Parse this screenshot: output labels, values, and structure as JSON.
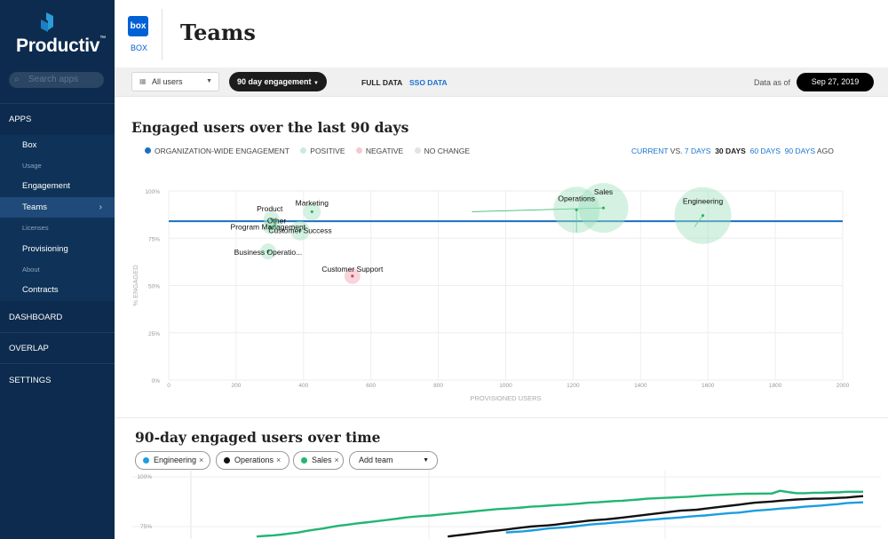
{
  "brand": {
    "name": "Productiv",
    "tm": "™"
  },
  "sidebar": {
    "search_placeholder": "Search apps",
    "apps_label": "APPS",
    "items": [
      {
        "label": "Box",
        "muted": false
      },
      {
        "label": "Usage",
        "muted": true
      },
      {
        "label": "Engagement",
        "muted": false
      },
      {
        "label": "Teams",
        "muted": false,
        "active": true
      },
      {
        "label": "Licenses",
        "muted": true
      },
      {
        "label": "Provisioning",
        "muted": false
      },
      {
        "label": "About",
        "muted": true
      },
      {
        "label": "Contracts",
        "muted": false
      }
    ],
    "sections": [
      "DASHBOARD",
      "OVERLAP",
      "SETTINGS"
    ]
  },
  "header": {
    "app_logo_text": "box",
    "app_name": "BOX",
    "title": "Teams"
  },
  "filters": {
    "users_dropdown": "All users",
    "engagement_dropdown": "90 day engagement",
    "full_data": "FULL DATA",
    "sso_data": "SSO DATA",
    "data_as_of_label": "Data as of",
    "date": "Sep 27, 2019"
  },
  "section1": {
    "title": "Engaged users over the last 90 days",
    "legend": [
      {
        "label": "ORGANIZATION-WIDE ENGAGEMENT",
        "color": "#1a6fc2"
      },
      {
        "label": "POSITIVE",
        "color": "#c9ecd8"
      },
      {
        "label": "NEGATIVE",
        "color": "#f5c9d0"
      },
      {
        "label": "NO CHANGE",
        "color": "#e3e3e3"
      }
    ],
    "range": {
      "current": "CURRENT",
      "vs": "VS.",
      "d7": "7 DAYS",
      "d30": "30 DAYS",
      "d60": "60 DAYS",
      "d90": "90 DAYS",
      "ago": "AGO"
    }
  },
  "chart_data": [
    {
      "type": "scatter",
      "title": "Engaged users over the last 90 days",
      "xlabel": "PROVISIONED USERS",
      "ylabel": "% ENGAGED",
      "xlim": [
        0,
        2000
      ],
      "ylim": [
        0,
        100
      ],
      "xticks": [
        "0",
        "200",
        "400",
        "600",
        "800",
        "1000",
        "1200",
        "1400",
        "1600",
        "1800",
        "2000"
      ],
      "yticks": [
        "0%",
        "25%",
        "50%",
        "75%",
        "100%"
      ],
      "org_line": 84,
      "points": [
        {
          "name": "Product",
          "x": 305,
          "y": 85,
          "r": 9,
          "status": "positive"
        },
        {
          "name": "Marketing",
          "x": 425,
          "y": 89,
          "r": 10,
          "status": "positive"
        },
        {
          "name": "Other",
          "x": 315,
          "y": 82,
          "r": 8,
          "status": "positive"
        },
        {
          "name": "Program Management",
          "x": 300,
          "y": 81,
          "r": 8,
          "status": "positive"
        },
        {
          "name": "Customer Success",
          "x": 390,
          "y": 79,
          "r": 11,
          "status": "positive"
        },
        {
          "name": "Business Operatio...",
          "x": 295,
          "y": 68,
          "r": 9,
          "status": "positive"
        },
        {
          "name": "Customer Support",
          "x": 545,
          "y": 55,
          "r": 9,
          "status": "negative"
        },
        {
          "name": "Operations",
          "x": 1210,
          "y": 90,
          "r": 26,
          "status": "positive"
        },
        {
          "name": "Sales",
          "x": 1290,
          "y": 91,
          "r": 28,
          "status": "positive"
        },
        {
          "name": "Engineering",
          "x": 1585,
          "y": 87,
          "r": 32,
          "status": "positive"
        }
      ]
    },
    {
      "type": "line",
      "title": "90-day engaged users over time",
      "yticks": [
        "100%",
        "75%"
      ],
      "series": [
        {
          "name": "Engineering",
          "color": "#1a9ee0",
          "values": [
            null,
            null,
            null,
            null,
            null,
            null,
            null,
            null,
            null,
            null,
            null,
            null,
            null,
            null,
            null,
            null,
            null,
            null,
            null,
            null,
            null,
            null,
            null,
            null,
            null,
            null,
            null,
            null,
            null,
            null,
            72,
            72.3,
            72.6,
            73,
            73.5,
            74,
            74.3,
            74.6,
            75,
            75.5,
            76,
            76.3,
            76.6,
            77,
            77.3,
            77.6,
            78,
            78.3,
            78.6,
            79,
            79.3,
            79.6,
            80,
            80.3,
            80.6,
            81,
            81.4,
            81.8,
            82,
            82.5,
            83,
            83.3,
            83.6,
            84,
            84.3,
            84.6,
            85,
            85.3,
            85.6,
            86,
            86.3,
            86.8,
            87,
            87.2
          ]
        },
        {
          "name": "Operations",
          "color": "#111111",
          "values": [
            null,
            null,
            null,
            null,
            null,
            null,
            null,
            null,
            null,
            null,
            null,
            null,
            null,
            null,
            null,
            null,
            null,
            null,
            null,
            null,
            null,
            null,
            null,
            70,
            70.5,
            71,
            71.5,
            72,
            72.6,
            73,
            73.5,
            74,
            74.5,
            75,
            75.3,
            75.6,
            76,
            76.5,
            77,
            77.5,
            78,
            78.3,
            78.6,
            79,
            79.5,
            80,
            80.5,
            81,
            81.5,
            82,
            82.5,
            83,
            83.2,
            83.5,
            84,
            84.5,
            85,
            85.5,
            86,
            86.5,
            87,
            87.3,
            87.6,
            88,
            88.3,
            88.6,
            88.8,
            89,
            89,
            89.2,
            89.4,
            89.6,
            90,
            90.3
          ]
        },
        {
          "name": "Sales",
          "color": "#22b573",
          "values": [
            70,
            70.3,
            70.6,
            71,
            71.5,
            72,
            72.8,
            73.5,
            74,
            74.8,
            75.5,
            76,
            76.5,
            77,
            77.5,
            78,
            78.5,
            79,
            79.6,
            80,
            80.3,
            80.6,
            81,
            81.4,
            81.8,
            82.2,
            82.6,
            83,
            83.4,
            83.8,
            84,
            84.3,
            84.6,
            85,
            85.2,
            85.5,
            85.8,
            86,
            86.3,
            86.6,
            87,
            87.2,
            87.5,
            87.8,
            88,
            88.3,
            88.6,
            89,
            89.2,
            89.4,
            89.6,
            89.8,
            90,
            90.3,
            90.6,
            90.8,
            91,
            91.2,
            91.4,
            91.5,
            91.5,
            91.6,
            91.6,
            93,
            92.3,
            91.8,
            91.8,
            92,
            92,
            92.2,
            92.2,
            92.5,
            92.5,
            92.5
          ]
        }
      ]
    }
  ],
  "section2": {
    "title": "90-day engaged users over time",
    "chips": [
      {
        "label": "Engineering",
        "color": "#1a9ee0"
      },
      {
        "label": "Operations",
        "color": "#111111"
      },
      {
        "label": "Sales",
        "color": "#22b573"
      }
    ],
    "chip_remove": "×",
    "add_team": "Add team"
  }
}
